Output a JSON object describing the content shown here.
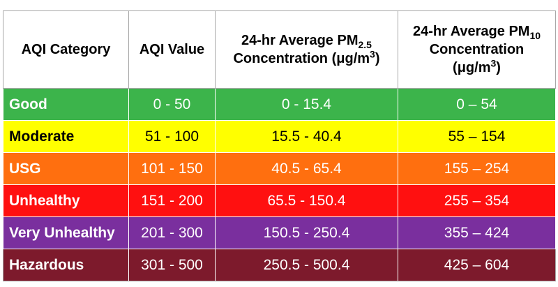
{
  "table": {
    "headers": {
      "category": "AQI Category",
      "value": "AQI Value",
      "pm25": {
        "prefix": "24-hr Average PM",
        "sub": "2.5",
        "line2": "Concentration (μg/m",
        "sup": "3",
        "close": ")"
      },
      "pm10": {
        "prefix": "24-hr Average PM",
        "sub": "10",
        "line2": "Concentration",
        "line3": "(μg/m",
        "sup": "3",
        "close": ")"
      }
    },
    "rows": [
      {
        "category": "Good",
        "aqi": "0 - 50",
        "pm25": "0 - 15.4",
        "pm10": "0 – 54",
        "color": "#3cb44b",
        "text_color": "#ffffff"
      },
      {
        "category": "Moderate",
        "aqi": "51 - 100",
        "pm25": "15.5 - 40.4",
        "pm10": "55 – 154",
        "color": "#ffff00",
        "text_color": "#000000"
      },
      {
        "category": "USG",
        "aqi": "101 - 150",
        "pm25": "40.5 - 65.4",
        "pm10": "155 – 254",
        "color": "#ff6f0f",
        "text_color": "#ffffff"
      },
      {
        "category": "Unhealthy",
        "aqi": "151 - 200",
        "pm25": "65.5 - 150.4",
        "pm10": "255 – 354",
        "color": "#ff1010",
        "text_color": "#ffffff"
      },
      {
        "category": "Very Unhealthy",
        "aqi": "201 - 300",
        "pm25": "150.5 - 250.4",
        "pm10": "355 – 424",
        "color": "#7a2f9e",
        "text_color": "#ffffff"
      },
      {
        "category": "Hazardous",
        "aqi": "301 - 500",
        "pm25": "250.5 - 500.4",
        "pm10": "425 – 604",
        "color": "#7d1a2c",
        "text_color": "#ffffff"
      }
    ]
  }
}
